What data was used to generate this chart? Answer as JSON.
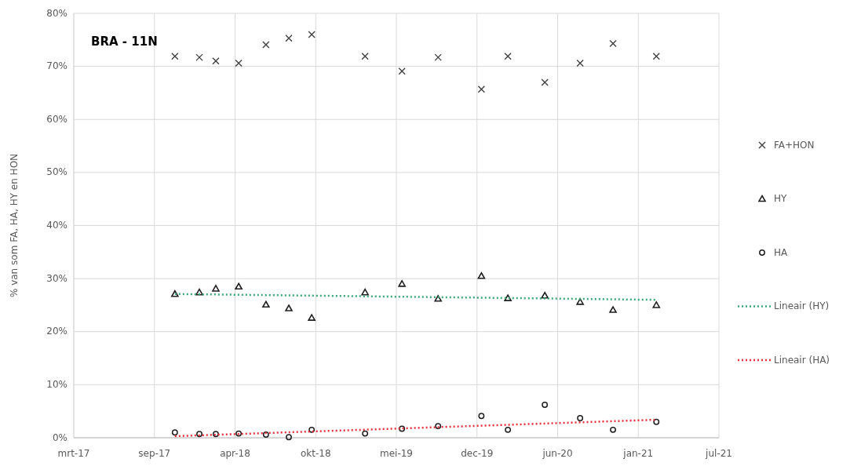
{
  "chart_data": {
    "type": "scatter",
    "title": "BRA - 11N",
    "ylabel": "% van som FA, HA, HY en HON",
    "x": [
      "2017-11-08",
      "2018-01-08",
      "2018-02-18",
      "2018-04-16",
      "2018-06-23",
      "2018-08-19",
      "2018-10-15",
      "2019-02-25",
      "2019-05-28",
      "2019-08-26",
      "2019-12-12",
      "2020-02-16",
      "2020-05-18",
      "2020-08-14",
      "2020-11-04",
      "2021-02-20"
    ],
    "series": [
      {
        "name": "FA+HON",
        "color": "#404040",
        "marker": "cross",
        "values": [
          71.9,
          71.7,
          71.0,
          70.6,
          74.1,
          75.3,
          76.0,
          71.9,
          69.1,
          71.7,
          65.7,
          71.9,
          67.0,
          70.6,
          74.3,
          71.9
        ]
      },
      {
        "name": "HY",
        "color": "#202020",
        "marker": "triangle",
        "values": [
          27.1,
          27.4,
          28.1,
          28.5,
          25.1,
          24.4,
          22.6,
          27.4,
          29.0,
          26.2,
          30.5,
          26.3,
          26.8,
          25.6,
          24.1,
          25.0
        ]
      },
      {
        "name": "HA",
        "color": "#202020",
        "marker": "circle",
        "values": [
          1.0,
          0.7,
          0.7,
          0.8,
          0.6,
          0.1,
          1.5,
          0.8,
          1.7,
          2.2,
          4.1,
          1.5,
          6.2,
          3.7,
          1.5,
          3.0
        ]
      },
      {
        "name": "Lineair (HY)",
        "type": "line",
        "color": "#3aa776",
        "marker": "none",
        "line_style": "dotted",
        "x": [
          "2017-11-08",
          "2021-02-20"
        ],
        "values": [
          27.1,
          26.0
        ]
      },
      {
        "name": "Lineair (HA)",
        "type": "line",
        "color": "#e8303a",
        "marker": "none",
        "line_style": "dotted",
        "x": [
          "2017-11-08",
          "2021-02-20"
        ],
        "values": [
          0.3,
          3.4
        ]
      }
    ],
    "ylim": [
      0,
      80
    ],
    "yticks": [
      {
        "value": 0,
        "label": "0%"
      },
      {
        "value": 10,
        "label": "10%"
      },
      {
        "value": 20,
        "label": "20%"
      },
      {
        "value": 30,
        "label": "30%"
      },
      {
        "value": 40,
        "label": "40%"
      },
      {
        "value": 50,
        "label": "50%"
      },
      {
        "value": 60,
        "label": "60%"
      },
      {
        "value": 70,
        "label": "70%"
      },
      {
        "value": 80,
        "label": "80%"
      }
    ],
    "xlim": [
      "2017-03-01",
      "2021-07-26"
    ],
    "xticks": [
      {
        "value": "2017-03-01",
        "label": "mrt-17"
      },
      {
        "value": "2017-09-18",
        "label": "sep-17"
      },
      {
        "value": "2018-04-07",
        "label": "apr-18"
      },
      {
        "value": "2018-10-25",
        "label": "okt-18"
      },
      {
        "value": "2019-05-14",
        "label": "mei-19"
      },
      {
        "value": "2019-12-01",
        "label": "dec-19"
      },
      {
        "value": "2020-06-19",
        "label": "jun-20"
      },
      {
        "value": "2021-01-06",
        "label": "jan-21"
      },
      {
        "value": "2021-07-26",
        "label": "jul-21"
      }
    ],
    "grid": true,
    "legend": "right"
  }
}
